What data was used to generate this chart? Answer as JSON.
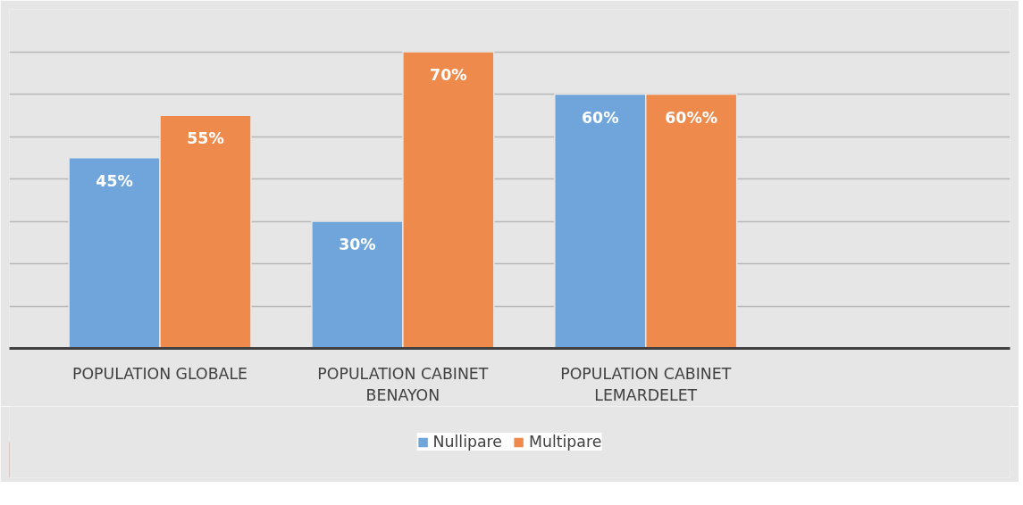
{
  "chart_data": {
    "type": "bar",
    "categories": [
      "POPULATION GLOBALE",
      "POPULATION CABINET BENAYON",
      "POPULATION CABINET LEMARDELET"
    ],
    "series": [
      {
        "name": "Nullipare",
        "color": "#6fa5da",
        "values": [
          45,
          30,
          60
        ],
        "value_labels": [
          "45%",
          "30%",
          "60%"
        ]
      },
      {
        "name": "Multipare",
        "color": "#ee8b4c",
        "values": [
          55,
          70,
          60
        ],
        "value_labels": [
          "55%",
          "70%",
          "60%%"
        ]
      }
    ],
    "ylim": [
      0,
      80
    ],
    "yticks": [
      {
        "value": 0,
        "label": null
      },
      {
        "value": 10,
        "label": null
      },
      {
        "value": 20,
        "label": null
      },
      {
        "value": 30,
        "label": null
      },
      {
        "value": 40,
        "label": null
      },
      {
        "value": 50,
        "label": null
      },
      {
        "value": 60,
        "label": null
      },
      {
        "value": 70,
        "label": null
      },
      {
        "value": 80,
        "label": null
      }
    ],
    "grid": "y",
    "legend": "bottom",
    "tick_labels": "x"
  }
}
